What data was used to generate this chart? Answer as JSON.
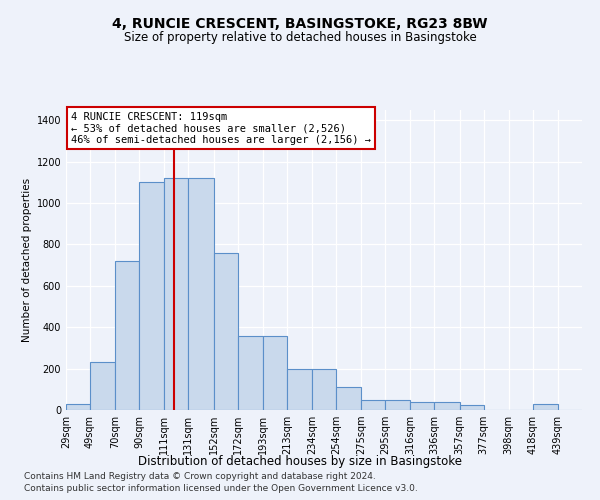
{
  "title": "4, RUNCIE CRESCENT, BASINGSTOKE, RG23 8BW",
  "subtitle": "Size of property relative to detached houses in Basingstoke",
  "xlabel": "Distribution of detached houses by size in Basingstoke",
  "ylabel": "Number of detached properties",
  "categories": [
    "29sqm",
    "49sqm",
    "70sqm",
    "90sqm",
    "111sqm",
    "131sqm",
    "152sqm",
    "172sqm",
    "193sqm",
    "213sqm",
    "234sqm",
    "254sqm",
    "275sqm",
    "295sqm",
    "316sqm",
    "336sqm",
    "357sqm",
    "377sqm",
    "398sqm",
    "418sqm",
    "439sqm"
  ],
  "values": [
    28,
    230,
    720,
    1100,
    1120,
    1120,
    760,
    360,
    360,
    200,
    200,
    110,
    50,
    50,
    40,
    40,
    25,
    0,
    0,
    28,
    0
  ],
  "bar_color": "#c9d9ec",
  "bar_edge_color": "#5b8fc9",
  "property_line_x": 119,
  "property_line_color": "#cc0000",
  "annotation_line1": "4 RUNCIE CRESCENT: 119sqm",
  "annotation_line2": "← 53% of detached houses are smaller (2,526)",
  "annotation_line3": "46% of semi-detached houses are larger (2,156) →",
  "annotation_box_color": "#cc0000",
  "ylim": [
    0,
    1450
  ],
  "yticks": [
    0,
    200,
    400,
    600,
    800,
    1000,
    1200,
    1400
  ],
  "footnote1": "Contains HM Land Registry data © Crown copyright and database right 2024.",
  "footnote2": "Contains public sector information licensed under the Open Government Licence v3.0.",
  "bg_color": "#eef2fa",
  "plot_bg_color": "#eef2fa",
  "grid_color": "#ffffff",
  "title_fontsize": 10,
  "subtitle_fontsize": 8.5,
  "xlabel_fontsize": 8.5,
  "ylabel_fontsize": 7.5,
  "tick_fontsize": 7,
  "annotation_fontsize": 7.5,
  "footnote_fontsize": 6.5
}
